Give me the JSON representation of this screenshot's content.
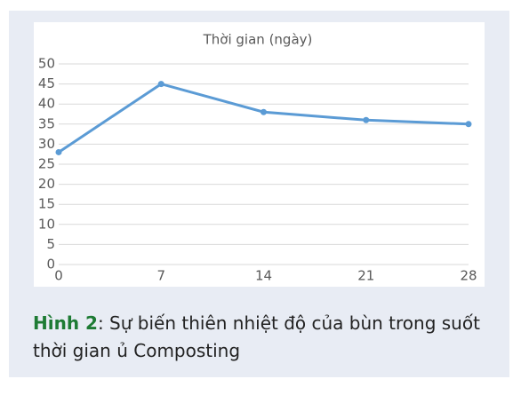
{
  "chart_data": {
    "type": "line",
    "xlabel": "Thời gian (ngày)",
    "x": [
      0,
      7,
      14,
      21,
      28
    ],
    "values": [
      28,
      45,
      38,
      36,
      35
    ],
    "color": "#5b9bd5",
    "xlim": [
      0,
      28
    ],
    "xticks": [
      0,
      7,
      14,
      21,
      28
    ],
    "ylim": [
      0,
      50
    ],
    "yticks": [
      0,
      5,
      10,
      15,
      20,
      25,
      30,
      35,
      40,
      45,
      50
    ],
    "grid": true
  },
  "caption": {
    "label": "Hình 2",
    "text": ": Sự biến thiên nhiệt độ của bùn trong suốt thời gian ủ Composting"
  }
}
